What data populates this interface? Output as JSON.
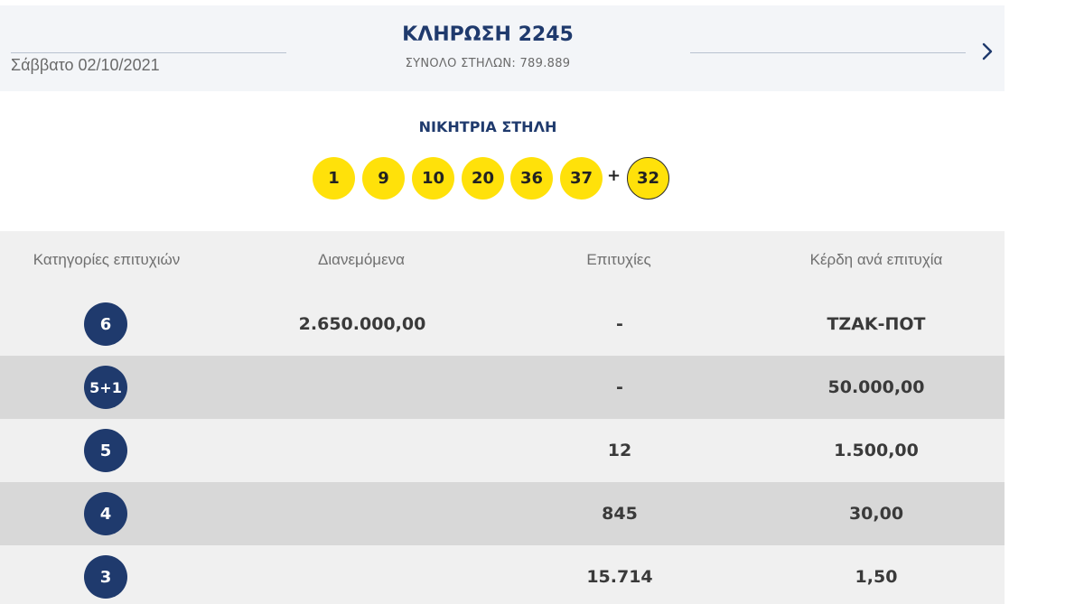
{
  "header": {
    "date": "Σάββατο 02/10/2021",
    "draw_title": "ΚΛΗΡΩΣΗ 2245",
    "total_columns": "ΣΥΝΟΛΟ ΣΤΗΛΩΝ: 789.889",
    "next_icon": "chevron-right-icon"
  },
  "winning": {
    "label": "ΝΙΚΗΤΡΙΑ ΣΤΗΛΗ",
    "numbers": [
      "1",
      "9",
      "10",
      "20",
      "36",
      "37"
    ],
    "plus": "+",
    "bonus": "32"
  },
  "table": {
    "headers": [
      "Κατηγορίες επιτυχιών",
      "Διανεμόμενα",
      "Επιτυχίες",
      "Κέρδη ανά επιτυχία"
    ],
    "rows": [
      {
        "category": "6",
        "distributed": "2.650.000,00",
        "winners": "-",
        "prize": "ΤΖΑΚ-ΠΟΤ"
      },
      {
        "category": "5+1",
        "distributed": "",
        "winners": "-",
        "prize": "50.000,00"
      },
      {
        "category": "5",
        "distributed": "",
        "winners": "12",
        "prize": "1.500,00"
      },
      {
        "category": "4",
        "distributed": "",
        "winners": "845",
        "prize": "30,00"
      },
      {
        "category": "3",
        "distributed": "",
        "winners": "15.714",
        "prize": "1,50"
      }
    ]
  },
  "colors": {
    "navy": "#1f3a6d",
    "ball_yellow": "#ffe10a",
    "row_light": "#f0f0f0",
    "row_dark": "#d8d8d8"
  }
}
